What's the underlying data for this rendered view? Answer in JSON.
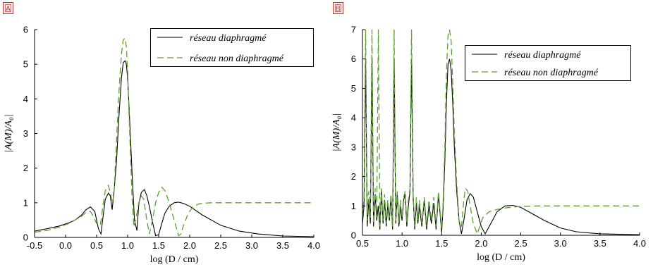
{
  "colors": {
    "series1": "#000000",
    "series2": "#5aa02c",
    "badge": "#c0392b"
  },
  "chart_data": [
    {
      "type": "line",
      "badge": "A",
      "xlabel": "log (D / cm)",
      "ylabel": "|A(M)/A₀|",
      "xlim": [
        -0.5,
        4.0
      ],
      "ylim": [
        0,
        6
      ],
      "xticks": [
        "-0.5",
        "0.0",
        "0.5",
        "1.0",
        "1.5",
        "2.0",
        "2.5",
        "3.0",
        "3.5",
        "4.0"
      ],
      "yticks": [
        "0",
        "1",
        "2",
        "3",
        "4",
        "5",
        "6"
      ],
      "legend_position": "top-right",
      "series": [
        {
          "name": "réseau diaphragmé",
          "style": "solid",
          "x": [
            -0.5,
            -0.3,
            -0.1,
            0.05,
            0.15,
            0.25,
            0.33,
            0.4,
            0.47,
            0.53,
            0.57,
            0.6,
            0.64,
            0.69,
            0.72,
            0.75,
            0.78,
            0.82,
            0.86,
            0.9,
            0.93,
            0.96,
            0.98,
            1.0,
            1.03,
            1.07,
            1.11,
            1.15,
            1.18,
            1.22,
            1.27,
            1.31,
            1.35,
            1.4,
            1.45,
            1.5,
            1.55,
            1.6,
            1.67,
            1.75,
            1.82,
            1.9,
            2.0,
            2.2,
            2.5,
            2.8,
            3.1,
            3.5,
            4.0
          ],
          "y": [
            0.18,
            0.25,
            0.33,
            0.42,
            0.5,
            0.63,
            0.8,
            0.88,
            0.75,
            0.25,
            0.1,
            0.55,
            1.1,
            1.28,
            1.2,
            0.8,
            1.3,
            2.2,
            3.5,
            4.6,
            5.05,
            5.1,
            5.0,
            4.6,
            3.5,
            1.9,
            0.5,
            0.2,
            0.95,
            1.3,
            1.38,
            1.2,
            0.9,
            0.45,
            0.05,
            0.08,
            0.4,
            0.7,
            0.9,
            1.0,
            1.02,
            0.98,
            0.9,
            0.65,
            0.35,
            0.18,
            0.1,
            0.04,
            0.02
          ]
        },
        {
          "name": "réseau non diaphragmé",
          "style": "dashed",
          "x": [
            -0.5,
            -0.3,
            -0.1,
            0.05,
            0.15,
            0.25,
            0.33,
            0.4,
            0.45,
            0.5,
            0.56,
            0.6,
            0.64,
            0.69,
            0.72,
            0.75,
            0.78,
            0.82,
            0.86,
            0.9,
            0.93,
            0.96,
            0.98,
            1.0,
            1.03,
            1.07,
            1.1,
            1.14,
            1.18,
            1.22,
            1.26,
            1.3,
            1.35,
            1.4,
            1.45,
            1.5,
            1.55,
            1.6,
            1.67,
            1.75,
            1.82,
            1.86,
            1.9,
            1.98,
            2.05,
            2.15,
            2.25,
            2.35,
            2.5,
            2.7,
            3.0,
            3.5,
            4.0
          ],
          "y": [
            0.15,
            0.2,
            0.3,
            0.4,
            0.5,
            0.6,
            0.72,
            0.75,
            0.6,
            0.4,
            0.35,
            0.9,
            1.35,
            1.5,
            1.3,
            1.0,
            1.2,
            2.8,
            4.2,
            5.3,
            5.7,
            5.75,
            5.5,
            4.8,
            3.2,
            1.2,
            0.3,
            0.6,
            1.0,
            1.2,
            1.1,
            0.6,
            0.1,
            0.5,
            1.0,
            1.3,
            1.45,
            1.35,
            1.0,
            0.5,
            0.05,
            0.1,
            0.35,
            0.7,
            0.88,
            0.97,
            0.99,
            1.0,
            1.0,
            1.0,
            1.0,
            1.0,
            1.0
          ]
        }
      ]
    },
    {
      "type": "line",
      "badge": "B",
      "xlabel": "log (D / cm)",
      "ylabel": "|A(M)/A₀|",
      "xlim": [
        0.5,
        4.0
      ],
      "ylim": [
        0,
        7
      ],
      "xticks": [
        "0.5",
        "1.0",
        "1.5",
        "2.0",
        "2.5",
        "3.0",
        "3.5",
        "4.0"
      ],
      "yticks": [
        "0",
        "1",
        "2",
        "3",
        "4",
        "5",
        "6",
        "7"
      ],
      "legend_position": "top-right",
      "series": [
        {
          "name": "réseau diaphragmé",
          "style": "solid",
          "x": [
            0.5,
            0.52,
            0.54,
            0.56,
            0.58,
            0.6,
            0.62,
            0.64,
            0.66,
            0.68,
            0.7,
            0.72,
            0.74,
            0.76,
            0.78,
            0.8,
            0.82,
            0.84,
            0.86,
            0.88,
            0.9,
            0.92,
            0.94,
            0.96,
            0.98,
            1.0,
            1.02,
            1.04,
            1.06,
            1.08,
            1.1,
            1.12,
            1.14,
            1.16,
            1.18,
            1.2,
            1.22,
            1.25,
            1.28,
            1.31,
            1.34,
            1.37,
            1.4,
            1.43,
            1.46,
            1.5,
            1.52,
            1.54,
            1.56,
            1.58,
            1.6,
            1.62,
            1.64,
            1.66,
            1.69,
            1.72,
            1.75,
            1.78,
            1.82,
            1.86,
            1.9,
            1.95,
            2.0,
            2.05,
            2.1,
            2.2,
            2.3,
            2.4,
            2.5,
            2.6,
            2.8,
            3.0,
            3.2,
            3.5,
            4.0
          ],
          "y": [
            0.4,
            1.0,
            6.0,
            0.3,
            1.2,
            0.4,
            6.0,
            0.3,
            1.4,
            0.5,
            1.0,
            0.2,
            1.5,
            0.4,
            1.2,
            0.3,
            1.0,
            0.5,
            1.3,
            0.2,
            6.0,
            0.4,
            1.4,
            0.3,
            1.0,
            0.5,
            1.2,
            1.4,
            0.3,
            1.0,
            1.5,
            6.0,
            1.3,
            0.2,
            1.1,
            0.4,
            1.0,
            0.3,
            1.2,
            0.2,
            1.0,
            0.4,
            1.1,
            0.2,
            1.4,
            0.1,
            1.0,
            2.5,
            4.5,
            5.8,
            6.0,
            5.6,
            4.5,
            3.0,
            1.5,
            0.5,
            0.05,
            0.5,
            1.2,
            1.42,
            1.3,
            0.8,
            0.3,
            0.05,
            0.3,
            0.8,
            1.0,
            1.02,
            0.95,
            0.8,
            0.5,
            0.25,
            0.12,
            0.05,
            0.02
          ]
        },
        {
          "name": "réseau non diaphragmé",
          "style": "dashed",
          "x": [
            0.5,
            0.52,
            0.54,
            0.56,
            0.58,
            0.6,
            0.62,
            0.64,
            0.66,
            0.68,
            0.7,
            0.72,
            0.74,
            0.76,
            0.78,
            0.8,
            0.82,
            0.84,
            0.86,
            0.88,
            0.9,
            0.92,
            0.94,
            0.96,
            0.98,
            1.0,
            1.02,
            1.04,
            1.06,
            1.08,
            1.1,
            1.12,
            1.14,
            1.16,
            1.18,
            1.2,
            1.22,
            1.25,
            1.28,
            1.31,
            1.34,
            1.37,
            1.4,
            1.43,
            1.46,
            1.5,
            1.52,
            1.54,
            1.56,
            1.58,
            1.6,
            1.62,
            1.64,
            1.66,
            1.69,
            1.72,
            1.75,
            1.78,
            1.8,
            1.83,
            1.86,
            1.9,
            1.95,
            1.98,
            2.02,
            2.1,
            2.2,
            2.3,
            2.4,
            2.5,
            2.6,
            2.7,
            2.9,
            3.2,
            3.5,
            4.0
          ],
          "y": [
            0.6,
            1.3,
            7.0,
            0.5,
            1.5,
            0.6,
            7.0,
            0.4,
            1.6,
            0.6,
            7.0,
            0.3,
            1.6,
            0.5,
            1.4,
            0.4,
            1.2,
            0.6,
            1.4,
            0.3,
            7.0,
            0.5,
            1.5,
            0.4,
            1.2,
            0.6,
            1.3,
            1.5,
            0.4,
            1.2,
            1.6,
            7.0,
            1.4,
            0.3,
            1.3,
            0.5,
            1.2,
            0.4,
            1.3,
            0.3,
            1.2,
            0.5,
            1.3,
            0.3,
            1.5,
            0.2,
            1.2,
            3.0,
            5.5,
            6.8,
            7.0,
            6.6,
            5.2,
            3.5,
            1.8,
            0.5,
            0.3,
            1.2,
            1.6,
            1.5,
            1.0,
            0.4,
            0.05,
            0.3,
            0.6,
            0.8,
            0.88,
            0.93,
            0.96,
            0.98,
            0.99,
            1.0,
            1.0,
            1.0,
            1.0,
            1.0
          ]
        }
      ]
    }
  ]
}
